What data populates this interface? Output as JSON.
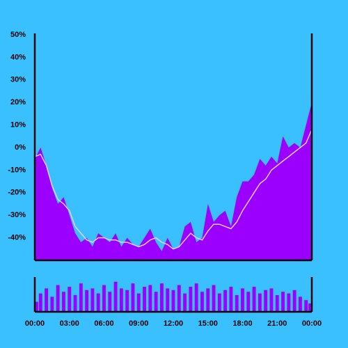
{
  "chart_data": [
    {
      "type": "area",
      "x": [
        0,
        0.5,
        1,
        1.5,
        2,
        2.5,
        3,
        3.5,
        4,
        4.5,
        5,
        5.5,
        6,
        6.5,
        7,
        7.5,
        8,
        8.5,
        9,
        9.5,
        10,
        10.5,
        11,
        11.5,
        12,
        12.5,
        13,
        13.5,
        14,
        14.5,
        15,
        15.5,
        16,
        16.5,
        17,
        17.5,
        18,
        18.5,
        19,
        19.5,
        20,
        20.5,
        21,
        21.5,
        22,
        22.5,
        23,
        23.5,
        24
      ],
      "series": [
        {
          "color": "#9b00ff",
          "values": [
            -5,
            0,
            -8,
            -18,
            -25,
            -22,
            -30,
            -38,
            -42,
            -40,
            -44,
            -38,
            -40,
            -42,
            -38,
            -44,
            -40,
            -43,
            -44,
            -40,
            -36,
            -42,
            -46,
            -40,
            -45,
            -44,
            -35,
            -33,
            -42,
            -40,
            -25,
            -33,
            -30,
            -28,
            -35,
            -22,
            -15,
            -15,
            -12,
            -5,
            -8,
            -4,
            -7,
            5,
            0,
            2,
            0,
            10,
            20
          ]
        },
        {
          "type": "line",
          "color": "#e6cdf5",
          "values": [
            -4,
            -3,
            -8,
            -17,
            -23,
            -25,
            -28,
            -35,
            -38,
            -41,
            -42,
            -40,
            -40,
            -41,
            -41,
            -42,
            -42,
            -43,
            -44,
            -43,
            -41,
            -40,
            -42,
            -43,
            -45,
            -44,
            -41,
            -38,
            -40,
            -41,
            -37,
            -34,
            -34,
            -35,
            -36,
            -33,
            -28,
            -24,
            -20,
            -16,
            -14,
            -10,
            -8,
            -6,
            -4,
            -2,
            0,
            2,
            8
          ]
        }
      ],
      "xlim": [
        0,
        24
      ],
      "ylim": [
        -50,
        50
      ],
      "yticks": [
        {
          "value": -40,
          "label": "-40%"
        },
        {
          "value": -30,
          "label": "-30%"
        },
        {
          "value": -20,
          "label": "-20%"
        },
        {
          "value": -10,
          "label": "-10%"
        },
        {
          "value": 0,
          "label": "0%"
        },
        {
          "value": 10,
          "label": "10%"
        },
        {
          "value": 20,
          "label": "20%"
        },
        {
          "value": 30,
          "label": "30%"
        },
        {
          "value": 40,
          "label": "40%"
        },
        {
          "value": 50,
          "label": "50%"
        }
      ]
    },
    {
      "type": "bar",
      "color": "#9b00ff",
      "x": [
        0,
        0.5,
        1,
        1.5,
        2,
        2.5,
        3,
        3.5,
        4,
        4.5,
        5,
        5.5,
        6,
        6.5,
        7,
        7.5,
        8,
        8.5,
        9,
        9.5,
        10,
        10.5,
        11,
        11.5,
        12,
        12.5,
        13,
        13.5,
        14,
        14.5,
        15,
        15.5,
        16,
        16.5,
        17,
        17.5,
        18,
        18.5,
        19,
        19.5,
        20,
        20.5,
        21,
        21.5,
        22,
        22.5,
        23,
        23.5,
        24
      ],
      "values": [
        30,
        55,
        70,
        45,
        80,
        60,
        75,
        50,
        85,
        65,
        70,
        55,
        80,
        60,
        90,
        70,
        65,
        85,
        55,
        75,
        80,
        60,
        85,
        70,
        65,
        80,
        55,
        75,
        85,
        60,
        70,
        80,
        55,
        65,
        75,
        50,
        70,
        60,
        75,
        55,
        65,
        70,
        50,
        60,
        55,
        65,
        45,
        35,
        25
      ],
      "xlim": [
        0,
        24
      ],
      "ylim": [
        0,
        100
      ],
      "xticks": [
        {
          "value": 0,
          "label": "00:00"
        },
        {
          "value": 3,
          "label": "03:00"
        },
        {
          "value": 6,
          "label": "06:00"
        },
        {
          "value": 9,
          "label": "09:00"
        },
        {
          "value": 12,
          "label": "12:00"
        },
        {
          "value": 15,
          "label": "15:00"
        },
        {
          "value": 18,
          "label": "18:00"
        },
        {
          "value": 21,
          "label": "21:00"
        },
        {
          "value": 24,
          "label": "00:00"
        }
      ]
    }
  ]
}
